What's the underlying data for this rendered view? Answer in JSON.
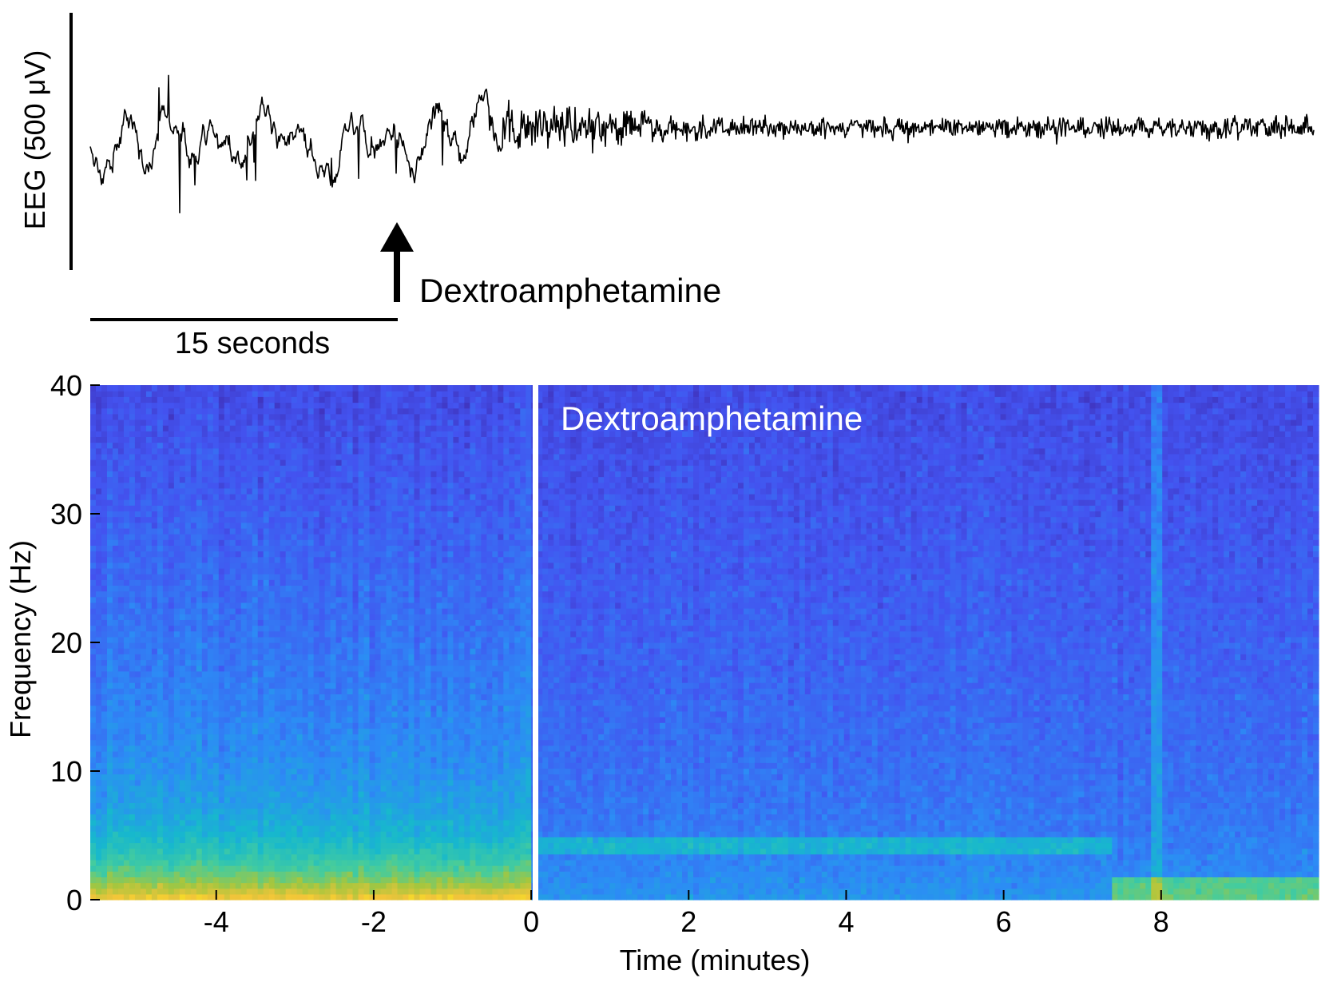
{
  "chart_data": [
    {
      "type": "line",
      "panel": "eeg-trace",
      "ylabel": "EEG (500 μV)",
      "scale_bar_time": "15 seconds",
      "annotation": "Dextroamphetamine",
      "line_color": "#000000",
      "series": [
        {
          "segment": "pre-injection",
          "relative_amplitude": 1.0,
          "description_values": "large slow-wave oscillations"
        },
        {
          "segment": "post-injection",
          "relative_amplitude": 0.3,
          "description_values": "low-amplitude fast activity"
        }
      ]
    },
    {
      "type": "heatmap",
      "panel": "spectrogram",
      "annotation": "Dextroamphetamine",
      "xlabel": "Time (minutes)",
      "ylabel": "Frequency (Hz)",
      "xlim": [
        -5.6,
        10
      ],
      "ylim": [
        0,
        40
      ],
      "x_ticks": [
        "-4",
        "-2",
        "0",
        "2",
        "4",
        "6",
        "8"
      ],
      "y_ticks": [
        "0",
        "10",
        "20",
        "30",
        "40"
      ],
      "event_time": 0,
      "colormap": [
        "#3e26a8",
        "#4353f0",
        "#2c8cf5",
        "#17b8cd",
        "#44cc9e",
        "#a5c63e",
        "#f2c43a",
        "#f9fb0e"
      ],
      "features": [
        {
          "time_range": [
            -5.6,
            0
          ],
          "freq_range": [
            0,
            3
          ],
          "power": "high"
        },
        {
          "time_range": [
            0.1,
            7.4
          ],
          "freq_range": [
            3.5,
            5
          ],
          "power": "moderate"
        },
        {
          "time_range": [
            7.4,
            10
          ],
          "freq_range": [
            0,
            1.5
          ],
          "power": "moderate"
        }
      ]
    }
  ]
}
